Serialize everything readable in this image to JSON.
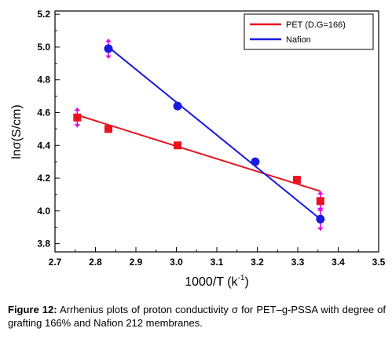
{
  "chart_data": {
    "type": "scatter",
    "xlabel": "1000/T",
    "xlabel_unit_base": "k",
    "xlabel_unit_exp": "-1",
    "ylabel": "lnσ(S/cm)",
    "xlim": [
      2.7,
      3.5
    ],
    "ylim": [
      3.75,
      5.22
    ],
    "x_ticks": [
      "2.7",
      "2.8",
      "2.9",
      "3.0",
      "3.1",
      "3.2",
      "3.3",
      "3.4",
      "3.5"
    ],
    "y_ticks": [
      "3.8",
      "4.0",
      "4.2",
      "4.4",
      "4.6",
      "4.8",
      "5.0",
      "5.2"
    ],
    "legend_position": "top-right",
    "series": [
      {
        "name": "PET (D.G=166)",
        "color": "#e8131f",
        "marker": "square",
        "x": [
          2.755,
          2.832,
          3.003,
          3.298,
          3.356
        ],
        "y": [
          4.57,
          4.5,
          4.4,
          4.19,
          4.06
        ],
        "fit": [
          [
            2.755,
            4.585
          ],
          [
            3.356,
            4.12
          ]
        ],
        "error_points": [
          {
            "x": 2.755,
            "y": 4.57,
            "lo": 4.51,
            "hi": 4.63
          },
          {
            "x": 3.356,
            "y": 4.06,
            "lo": 4.0,
            "hi": 4.12
          }
        ]
      },
      {
        "name": "Nafion",
        "color": "#1a1adf",
        "marker": "circle",
        "x": [
          2.832,
          3.003,
          3.195,
          3.356
        ],
        "y": [
          4.99,
          4.64,
          4.3,
          3.95
        ],
        "fit": [
          [
            2.832,
            5.0
          ],
          [
            3.356,
            3.95
          ]
        ],
        "error_points": [
          {
            "x": 2.832,
            "y": 4.99,
            "lo": 4.93,
            "hi": 5.05
          },
          {
            "x": 3.356,
            "y": 3.95,
            "lo": 3.88,
            "hi": 4.02
          }
        ]
      }
    ],
    "error_bar_color": "#e000e0"
  },
  "caption": {
    "label": "Figure 12:",
    "text": " Arrhenius plots of proton conductivity σ for PET–g-PSSA with degree of grafting  166% and Nafion 212 membranes."
  }
}
